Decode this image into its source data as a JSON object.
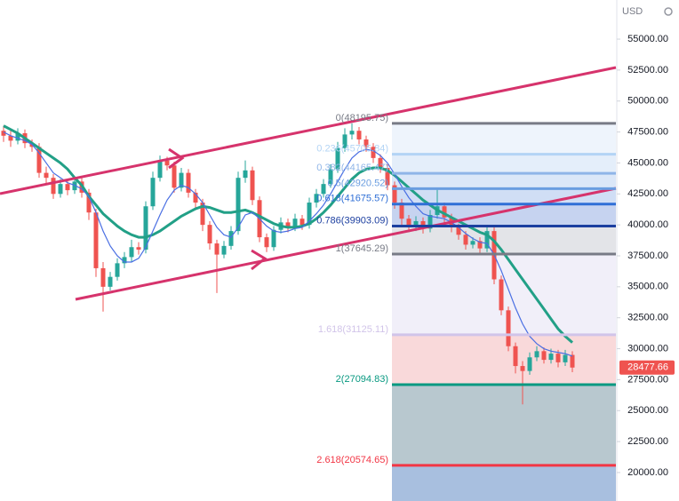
{
  "chart_data": {
    "type": "candlestick",
    "currency": "USD",
    "up_color": "#26a69a",
    "down_color": "#ef5350",
    "ylim": [
      17700,
      58160
    ],
    "yticks": [
      {
        "value": 55000,
        "label": "55000.00"
      },
      {
        "value": 52500,
        "label": "52500.00"
      },
      {
        "value": 50000,
        "label": "50000.00"
      },
      {
        "value": 47500,
        "label": "47500.00"
      },
      {
        "value": 45000,
        "label": "45000.00"
      },
      {
        "value": 42500,
        "label": "42500.00"
      },
      {
        "value": 40000,
        "label": "40000.00"
      },
      {
        "value": 37500,
        "label": "37500.00"
      },
      {
        "value": 35000,
        "label": "35000.00"
      },
      {
        "value": 32500,
        "label": "32500.00"
      },
      {
        "value": 30000,
        "label": "30000.00"
      },
      {
        "value": 27500,
        "label": "27500.00"
      },
      {
        "value": 25000,
        "label": "25000.00"
      },
      {
        "value": 22500,
        "label": "22500.00"
      },
      {
        "value": 20000,
        "label": "20000.00"
      }
    ],
    "open": [
      47600,
      47200,
      46800,
      47400,
      46600,
      46300,
      44200,
      43800,
      42500,
      43300,
      42800,
      43500,
      42600,
      41000,
      36500,
      35000,
      35800,
      36900,
      37400,
      38200,
      38000,
      41500,
      43800,
      45200,
      44800,
      43000,
      44200,
      42600,
      41800,
      40000,
      38500,
      37600,
      38300,
      39500,
      43800,
      44400,
      42000,
      39000,
      38200,
      39600,
      40200,
      39800,
      40500,
      40000,
      41800,
      42500,
      43300,
      44500,
      46200,
      47300,
      47600,
      46900,
      46300,
      45400,
      44600,
      43200,
      41800,
      40500,
      39900,
      40300,
      39700,
      40800,
      41500,
      40600,
      39800,
      39200,
      38400,
      38700,
      38100,
      39500,
      35600,
      33100,
      30200,
      28600,
      28200,
      29300,
      29800,
      29100,
      29600,
      28900,
      29500
    ],
    "high": [
      48000,
      47600,
      47800,
      47700,
      46900,
      46600,
      44700,
      44100,
      43700,
      43600,
      43900,
      43800,
      42900,
      41300,
      37000,
      36200,
      37300,
      37800,
      38800,
      38600,
      41900,
      44300,
      45600,
      45500,
      45100,
      44600,
      44500,
      42900,
      42100,
      40300,
      38800,
      38700,
      39900,
      44300,
      45200,
      44700,
      42300,
      39300,
      39900,
      40600,
      40500,
      40900,
      40800,
      42200,
      42900,
      43700,
      44900,
      46700,
      47800,
      48195.75,
      47900,
      47200,
      46600,
      45700,
      44900,
      43500,
      42100,
      40800,
      40700,
      40600,
      41200,
      42900,
      41800,
      40900,
      40100,
      39500,
      39000,
      39000,
      39900,
      39800,
      35900,
      33400,
      30500,
      29000,
      29700,
      30200,
      30100,
      30000,
      29900,
      29900,
      29800
    ],
    "low": [
      46700,
      46300,
      46500,
      46200,
      45900,
      43800,
      43300,
      42100,
      42200,
      42400,
      42500,
      42200,
      40400,
      35800,
      33000,
      34700,
      35500,
      36500,
      37000,
      37600,
      37700,
      41200,
      43500,
      44400,
      42600,
      42700,
      42200,
      41400,
      39500,
      38000,
      34500,
      37300,
      38000,
      39200,
      43400,
      41600,
      38600,
      37800,
      37900,
      39300,
      39400,
      39500,
      39600,
      39700,
      41400,
      42200,
      43000,
      44200,
      45900,
      46900,
      46500,
      45900,
      45000,
      44200,
      42800,
      41300,
      40000,
      39400,
      39500,
      39300,
      39400,
      40500,
      40200,
      39400,
      38800,
      38000,
      38100,
      37600,
      37800,
      35200,
      32700,
      29800,
      28000,
      25500,
      27900,
      29000,
      28800,
      28800,
      28500,
      28600,
      28100
    ],
    "close": [
      47200,
      46800,
      47400,
      46600,
      46300,
      44200,
      43800,
      42500,
      43300,
      42800,
      43500,
      42600,
      41000,
      36500,
      35000,
      35800,
      36900,
      37400,
      38200,
      38000,
      41500,
      43800,
      45200,
      44800,
      43000,
      44200,
      42600,
      41800,
      40000,
      38500,
      37600,
      38300,
      39500,
      43800,
      44400,
      42000,
      39000,
      38200,
      39600,
      40200,
      39800,
      40500,
      40000,
      41800,
      42500,
      43300,
      44500,
      46200,
      47300,
      47600,
      46900,
      46300,
      45400,
      44600,
      43200,
      41800,
      40500,
      39900,
      40300,
      39700,
      40800,
      41500,
      40600,
      39800,
      39200,
      38400,
      38700,
      38100,
      39500,
      35600,
      33100,
      30200,
      28600,
      28200,
      29300,
      29800,
      29100,
      29600,
      28900,
      29500,
      28477.66
    ],
    "moving_averages": [
      {
        "color": "#22a087",
        "values": [
          48000,
          47700,
          47400,
          47000,
          46600,
          46200,
          45800,
          45400,
          45000,
          44500,
          43800,
          43200,
          42300,
          41600,
          40900,
          40400,
          39900,
          39500,
          39200,
          39000,
          39000,
          39200,
          39500,
          39900,
          40300,
          40700,
          41000,
          41300,
          41500,
          41400,
          41200,
          41000,
          41000,
          41100,
          41200,
          41000,
          40700,
          40400,
          40100,
          39900,
          39800,
          39800,
          39900,
          40100,
          40500,
          41000,
          41600,
          42300,
          43000,
          43700,
          44200,
          44500,
          44600,
          44600,
          44400,
          44000,
          43500,
          43000,
          42500,
          42000,
          41600,
          41200,
          40900,
          40600,
          40300,
          40000,
          39700,
          39400,
          39200,
          38700,
          38000,
          37200,
          36400,
          35600,
          34800,
          34000,
          33200,
          32400,
          31600,
          31000,
          30500
        ]
      },
      {
        "color": "#4a6fe3",
        "values": [
          47500,
          47200,
          47000,
          46800,
          46500,
          45800,
          45000,
          44200,
          43800,
          43400,
          43200,
          42900,
          42300,
          41000,
          39500,
          38300,
          37500,
          37000,
          37000,
          37300,
          38200,
          39500,
          40800,
          42000,
          42800,
          43200,
          43000,
          42500,
          41800,
          40800,
          39800,
          39200,
          39000,
          39800,
          40800,
          41000,
          40500,
          39900,
          39500,
          39400,
          39500,
          39700,
          39800,
          40300,
          40900,
          41600,
          42500,
          43500,
          44500,
          45400,
          45900,
          46100,
          46000,
          45600,
          45000,
          44100,
          43100,
          42200,
          41500,
          40900,
          40700,
          40600,
          40500,
          40200,
          39800,
          39300,
          38900,
          38600,
          38500,
          37600,
          36300,
          34800,
          33300,
          32000,
          31000,
          30400,
          30000,
          29800,
          29700,
          29600,
          29400
        ]
      }
    ],
    "fib_levels": [
      {
        "value": 48195.75,
        "label": "0(48195.75)",
        "color": "#787b86",
        "fill": "#eef4fc"
      },
      {
        "value": 45705.84,
        "label": "0.236(45705.84)",
        "color": "#b3d4f5",
        "fill": "#e4eefa"
      },
      {
        "value": 44165.47,
        "label": "0.382(44165.47)",
        "color": "#8fb5e8",
        "fill": "#dbe7f8"
      },
      {
        "value": 42920.52,
        "label": "0.5(42920.52)",
        "color": "#6a9de0",
        "fill": "#d0def5"
      },
      {
        "value": 41675.57,
        "label": "0.618(41675.57)",
        "color": "#2f6fd6",
        "fill": "#c6d3f0"
      },
      {
        "value": 39903.09,
        "label": "0.786(39903.09)",
        "color": "#1c3fa0",
        "fill": "#e3e4e8"
      },
      {
        "value": 37645.29,
        "label": "1(37645.29)",
        "color": "#787b86",
        "fill": "#f1eff9"
      },
      {
        "value": 31125.11,
        "label": "1.618(31125.11)",
        "color": "#d1c4e9",
        "fill": "#f9d9da"
      },
      {
        "value": 27094.83,
        "label": "2(27094.83)",
        "color": "#089981",
        "fill": "#b8c8cf"
      },
      {
        "value": 20574.65,
        "label": "2.618(20574.65)",
        "color": "#f23645",
        "fill": "#a8bfdf"
      }
    ]
  }
}
